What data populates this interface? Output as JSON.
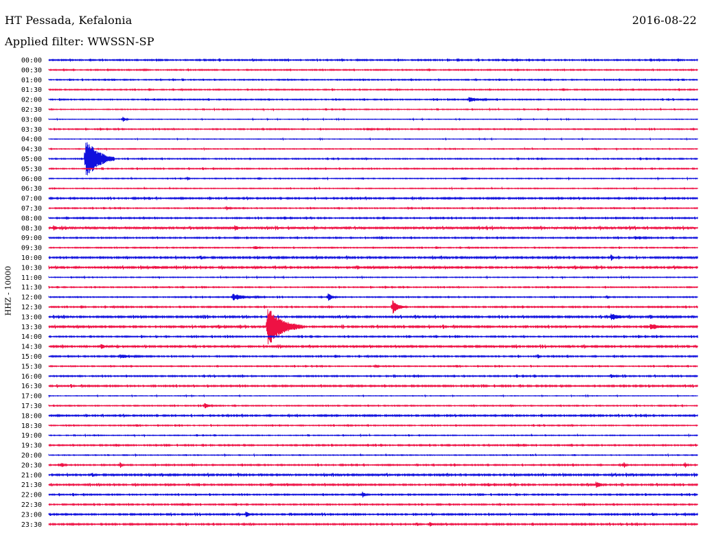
{
  "header": {
    "station": "HT Pessada, Kefalonia",
    "filter": "Applied filter: WWSSN-SP",
    "date": "2016-08-22"
  },
  "chart_data": {
    "type": "line",
    "title": "HT Pessada, Kefalonia",
    "subtitle": "Applied filter: WWSSN-SP",
    "ylabel": "HHZ - 10000",
    "colors": {
      "even_row": "#1010dd",
      "odd_row": "#ee1144"
    },
    "rows": [
      "00:00",
      "00:30",
      "01:00",
      "01:30",
      "02:00",
      "02:30",
      "03:00",
      "03:30",
      "04:00",
      "04:30",
      "05:00",
      "05:30",
      "06:00",
      "06:30",
      "07:00",
      "07:30",
      "08:00",
      "08:30",
      "09:00",
      "09:30",
      "10:00",
      "10:30",
      "11:00",
      "11:30",
      "12:00",
      "12:30",
      "13:00",
      "13:30",
      "14:00",
      "14:30",
      "15:00",
      "15:30",
      "16:00",
      "16:30",
      "17:00",
      "17:30",
      "18:00",
      "18:30",
      "19:00",
      "19:30",
      "20:00",
      "20:30",
      "21:00",
      "21:30",
      "22:00",
      "22:30",
      "23:00",
      "23:30"
    ],
    "noise_level": [
      0.6,
      0.5,
      0.5,
      0.5,
      0.5,
      0.4,
      0.3,
      0.5,
      0.3,
      0.4,
      0.5,
      0.5,
      0.4,
      0.4,
      0.7,
      0.5,
      0.6,
      0.9,
      0.6,
      0.5,
      0.8,
      0.8,
      0.4,
      0.5,
      0.5,
      0.6,
      0.8,
      0.8,
      0.6,
      0.8,
      0.6,
      0.5,
      0.6,
      0.7,
      0.3,
      0.5,
      0.7,
      0.5,
      0.4,
      0.6,
      0.4,
      0.6,
      0.8,
      0.7,
      0.6,
      0.6,
      0.7,
      0.7
    ],
    "events": [
      {
        "row": 0,
        "minute": 21.0,
        "amp": 2,
        "dur": 0.6
      },
      {
        "row": 1,
        "minute": 4.4,
        "amp": 2,
        "dur": 0.3
      },
      {
        "row": 4,
        "minute": 19.4,
        "amp": 4,
        "dur": 1.2
      },
      {
        "row": 6,
        "minute": 3.4,
        "amp": 5,
        "dur": 0.3
      },
      {
        "row": 7,
        "minute": 14.7,
        "amp": 2,
        "dur": 0.8
      },
      {
        "row": 10,
        "minute": 1.7,
        "amp": 33,
        "dur": 1.2
      },
      {
        "row": 12,
        "minute": 6.4,
        "amp": 3,
        "dur": 0.2
      },
      {
        "row": 12,
        "minute": 9.7,
        "amp": 2,
        "dur": 0.2
      },
      {
        "row": 12,
        "minute": 19.1,
        "amp": 2,
        "dur": 0.5
      },
      {
        "row": 15,
        "minute": 8.2,
        "amp": 4,
        "dur": 0.3
      },
      {
        "row": 17,
        "minute": 0.2,
        "amp": 5,
        "dur": 0.4
      },
      {
        "row": 17,
        "minute": 8.6,
        "amp": 5,
        "dur": 0.4
      },
      {
        "row": 18,
        "minute": 27.1,
        "amp": 3,
        "dur": 1.0
      },
      {
        "row": 19,
        "minute": 9.5,
        "amp": 3,
        "dur": 0.5
      },
      {
        "row": 20,
        "minute": 26.0,
        "amp": 5,
        "dur": 0.3
      },
      {
        "row": 21,
        "minute": 2.7,
        "amp": 3,
        "dur": 0.5
      },
      {
        "row": 21,
        "minute": 4.9,
        "amp": 3,
        "dur": 0.7
      },
      {
        "row": 24,
        "minute": 8.5,
        "amp": 5,
        "dur": 1.5
      },
      {
        "row": 24,
        "minute": 12.9,
        "amp": 7,
        "dur": 0.4
      },
      {
        "row": 24,
        "minute": 25.8,
        "amp": 3,
        "dur": 0.2
      },
      {
        "row": 25,
        "minute": 15.9,
        "amp": 10,
        "dur": 0.6
      },
      {
        "row": 26,
        "minute": 26.0,
        "amp": 5,
        "dur": 1.2
      },
      {
        "row": 27,
        "minute": 10.1,
        "amp": 30,
        "dur": 1.5
      },
      {
        "row": 27,
        "minute": 27.8,
        "amp": 4,
        "dur": 1.8
      },
      {
        "row": 29,
        "minute": 2.4,
        "amp": 4,
        "dur": 0.6
      },
      {
        "row": 30,
        "minute": 3.3,
        "amp": 3,
        "dur": 1.6
      },
      {
        "row": 30,
        "minute": 22.6,
        "amp": 4,
        "dur": 0.2
      },
      {
        "row": 31,
        "minute": 15.1,
        "amp": 3,
        "dur": 0.3
      },
      {
        "row": 32,
        "minute": 26.0,
        "amp": 3,
        "dur": 0.6
      },
      {
        "row": 35,
        "minute": 7.2,
        "amp": 5,
        "dur": 0.5
      },
      {
        "row": 39,
        "minute": 3.1,
        "amp": 3,
        "dur": 0.3
      },
      {
        "row": 41,
        "minute": 0.6,
        "amp": 5,
        "dur": 0.2
      },
      {
        "row": 41,
        "minute": 3.3,
        "amp": 5,
        "dur": 0.2
      },
      {
        "row": 41,
        "minute": 26.6,
        "amp": 5,
        "dur": 0.2
      },
      {
        "row": 41,
        "minute": 29.4,
        "amp": 6,
        "dur": 0.2
      },
      {
        "row": 43,
        "minute": 25.3,
        "amp": 5,
        "dur": 0.6
      },
      {
        "row": 44,
        "minute": 14.5,
        "amp": 5,
        "dur": 0.3
      },
      {
        "row": 46,
        "minute": 9.1,
        "amp": 5,
        "dur": 0.4
      },
      {
        "row": 47,
        "minute": 17.6,
        "amp": 4,
        "dur": 0.4
      }
    ]
  }
}
